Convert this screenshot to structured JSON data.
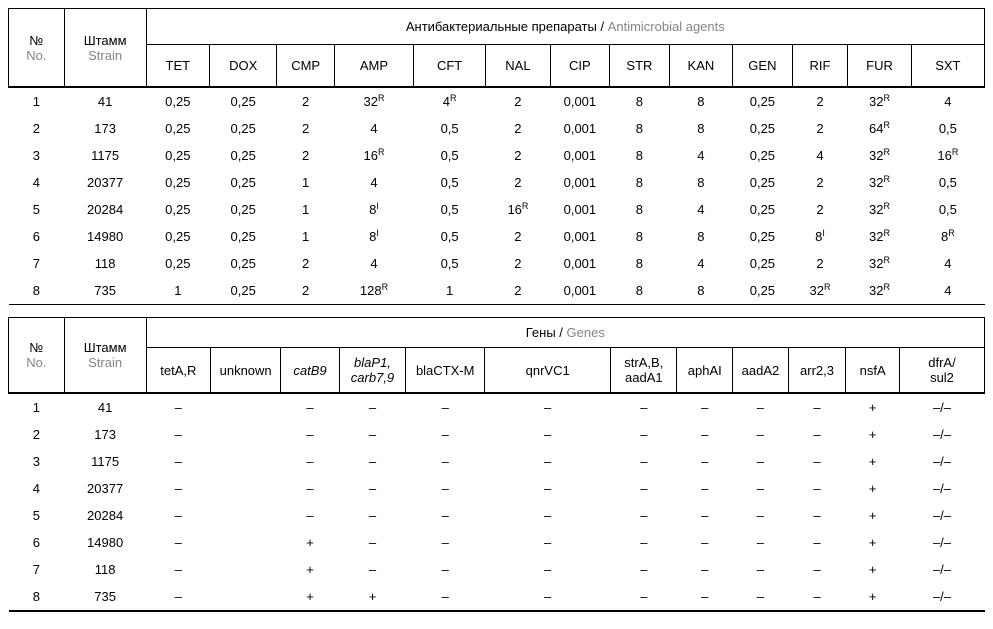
{
  "page": {
    "bg": "#ffffff",
    "text_color": "#000000",
    "muted_color": "#858585"
  },
  "table1": {
    "corner": {
      "no_ru": "№",
      "no_en": "No.",
      "strain_ru": "Штамм",
      "strain_en": "Strain"
    },
    "group_ru": "Антибактериальные препараты / ",
    "group_en": "Antimicrobial agents",
    "columns": [
      "TET",
      "DOX",
      "CMP",
      "AMP",
      "CFT",
      "NAL",
      "CIP",
      "STR",
      "KAN",
      "GEN",
      "RIF",
      "FUR",
      "SXT"
    ],
    "rows": [
      {
        "no": "1",
        "strain": "41",
        "values": [
          "0,25",
          "0,25",
          "2",
          "32^R",
          "4^R",
          "2",
          "0,001",
          "8",
          "8",
          "0,25",
          "2",
          "32^R",
          "4"
        ]
      },
      {
        "no": "2",
        "strain": "173",
        "values": [
          "0,25",
          "0,25",
          "2",
          "4",
          "0,5",
          "2",
          "0,001",
          "8",
          "8",
          "0,25",
          "2",
          "64^R",
          "0,5"
        ]
      },
      {
        "no": "3",
        "strain": "1175",
        "values": [
          "0,25",
          "0,25",
          "2",
          "16^R",
          "0,5",
          "2",
          "0,001",
          "8",
          "4",
          "0,25",
          "4",
          "32^R",
          "16^R"
        ]
      },
      {
        "no": "4",
        "strain": "20377",
        "values": [
          "0,25",
          "0,25",
          "1",
          "4",
          "0,5",
          "2",
          "0,001",
          "8",
          "8",
          "0,25",
          "2",
          "32^R",
          "0,5"
        ]
      },
      {
        "no": "5",
        "strain": "20284",
        "values": [
          "0,25",
          "0,25",
          "1",
          "8^I",
          "0,5",
          "16^R",
          "0,001",
          "8",
          "4",
          "0,25",
          "2",
          "32^R",
          "0,5"
        ]
      },
      {
        "no": "6",
        "strain": "14980",
        "values": [
          "0,25",
          "0,25",
          "1",
          "8^I",
          "0,5",
          "2",
          "0,001",
          "8",
          "8",
          "0,25",
          "8^I",
          "32^R",
          "8^R"
        ]
      },
      {
        "no": "7",
        "strain": "118",
        "values": [
          "0,25",
          "0,25",
          "2",
          "4",
          "0,5",
          "2",
          "0,001",
          "8",
          "4",
          "0,25",
          "2",
          "32^R",
          "4"
        ]
      },
      {
        "no": "8",
        "strain": "735",
        "values": [
          "1",
          "0,25",
          "2",
          "128^R",
          "1",
          "2",
          "0,001",
          "8",
          "8",
          "0,25",
          "32^R",
          "32^R",
          "4"
        ]
      }
    ]
  },
  "table2": {
    "corner": {
      "no_ru": "№",
      "no_en": "No.",
      "strain_ru": "Штамм",
      "strain_en": "Strain"
    },
    "group_ru": "Гены / ",
    "group_en": "Genes",
    "columns": [
      {
        "label": "tetA,R",
        "italic": false
      },
      {
        "label": "unknown",
        "italic": false
      },
      {
        "label": "catB9",
        "italic": true
      },
      {
        "label": "blaP1,\ncarb7,9",
        "italic": true
      },
      {
        "label": "blaCTX-M",
        "italic": false
      },
      {
        "label": "qnrVC1",
        "italic": false
      },
      {
        "label": "strA,B,\naadA1",
        "italic": false
      },
      {
        "label": "aphAI",
        "italic": false
      },
      {
        "label": "aadA2",
        "italic": false
      },
      {
        "label": "arr2,3",
        "italic": false
      },
      {
        "label": "nsfA",
        "italic": false
      },
      {
        "label": "dfrA/\nsul2",
        "italic": false
      }
    ],
    "rows": [
      {
        "no": "1",
        "strain": "41",
        "genes": [
          "–",
          "",
          "–",
          "–",
          "–",
          "–",
          "–",
          "–",
          "–",
          "–",
          "+",
          "–/–"
        ]
      },
      {
        "no": "2",
        "strain": "173",
        "genes": [
          "–",
          "",
          "–",
          "–",
          "–",
          "–",
          "–",
          "–",
          "–",
          "–",
          "+",
          "–/–"
        ]
      },
      {
        "no": "3",
        "strain": "1175",
        "genes": [
          "–",
          "",
          "–",
          "–",
          "–",
          "–",
          "–",
          "–",
          "–",
          "–",
          "+",
          "–/–"
        ]
      },
      {
        "no": "4",
        "strain": "20377",
        "genes": [
          "–",
          "",
          "–",
          "–",
          "–",
          "–",
          "–",
          "–",
          "–",
          "–",
          "+",
          "–/–"
        ]
      },
      {
        "no": "5",
        "strain": "20284",
        "genes": [
          "–",
          "",
          "–",
          "–",
          "–",
          "–",
          "–",
          "–",
          "–",
          "–",
          "+",
          "–/–"
        ]
      },
      {
        "no": "6",
        "strain": "14980",
        "genes": [
          "–",
          "",
          "+",
          "–",
          "–",
          "–",
          "–",
          "–",
          "–",
          "–",
          "+",
          "–/–"
        ]
      },
      {
        "no": "7",
        "strain": "118",
        "genes": [
          "–",
          "",
          "+",
          "–",
          "–",
          "–",
          "–",
          "–",
          "–",
          "–",
          "+",
          "–/–"
        ]
      },
      {
        "no": "8",
        "strain": "735",
        "genes": [
          "–",
          "",
          "+",
          "+",
          "–",
          "–",
          "–",
          "–",
          "–",
          "–",
          "+",
          "–/–"
        ]
      }
    ]
  }
}
